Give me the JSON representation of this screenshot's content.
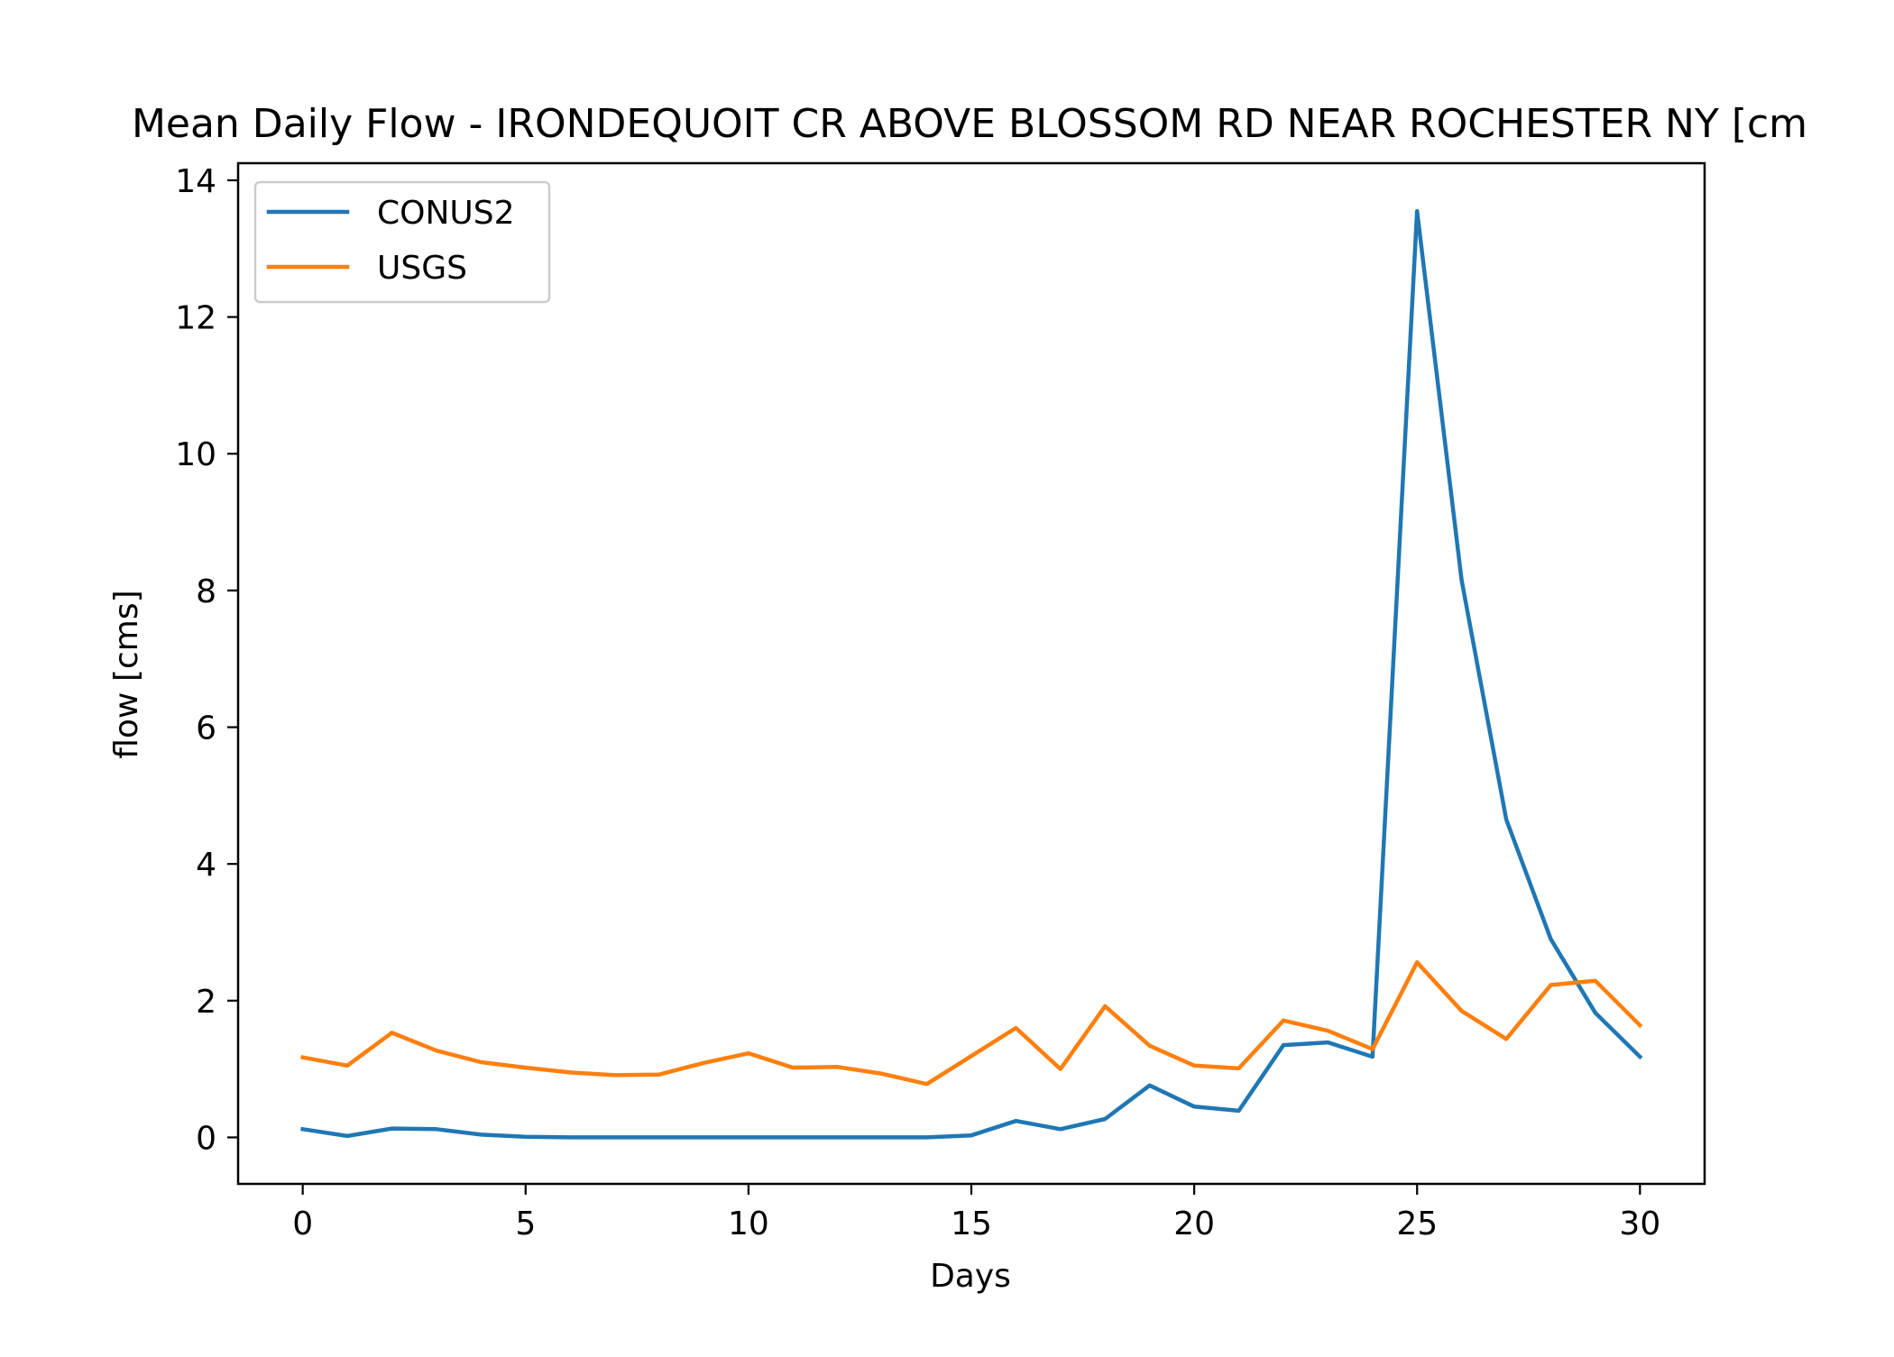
{
  "chart_data": {
    "type": "line",
    "title": "Mean Daily Flow - IRONDEQUOIT CR ABOVE BLOSSOM RD NEAR ROCHESTER NY [cm",
    "xlabel": "Days",
    "ylabel": "flow [cms]",
    "xlim": [
      -1.45,
      31.45
    ],
    "ylim": [
      -0.68,
      14.25
    ],
    "xticks": [
      0,
      5,
      10,
      15,
      20,
      25,
      30
    ],
    "yticks": [
      0,
      2,
      4,
      6,
      8,
      10,
      12,
      14
    ],
    "grid": false,
    "legend": "upper-left",
    "x": [
      0,
      1,
      2,
      3,
      4,
      5,
      6,
      7,
      8,
      9,
      10,
      11,
      12,
      13,
      14,
      15,
      16,
      17,
      18,
      19,
      20,
      21,
      22,
      23,
      24,
      25,
      26,
      27,
      28,
      29,
      30
    ],
    "series": [
      {
        "name": "CONUS2",
        "color": "#1f77b4",
        "values": [
          0.12,
          0.02,
          0.13,
          0.12,
          0.04,
          0.01,
          0.0,
          0.0,
          0.0,
          0.0,
          0.0,
          0.0,
          0.0,
          0.0,
          0.0,
          0.03,
          0.24,
          0.12,
          0.27,
          0.76,
          0.45,
          0.39,
          1.35,
          1.39,
          1.18,
          13.55,
          8.15,
          4.65,
          2.9,
          1.82,
          1.18
        ]
      },
      {
        "name": "USGS",
        "color": "#ff7f0e",
        "values": [
          1.17,
          1.05,
          1.53,
          1.27,
          1.1,
          1.02,
          0.95,
          0.91,
          0.92,
          1.09,
          1.23,
          1.02,
          1.03,
          0.93,
          0.78,
          1.19,
          1.6,
          1.0,
          1.92,
          1.34,
          1.05,
          1.01,
          1.71,
          1.56,
          1.29,
          2.56,
          1.85,
          1.44,
          2.23,
          2.29,
          1.64
        ]
      }
    ]
  }
}
